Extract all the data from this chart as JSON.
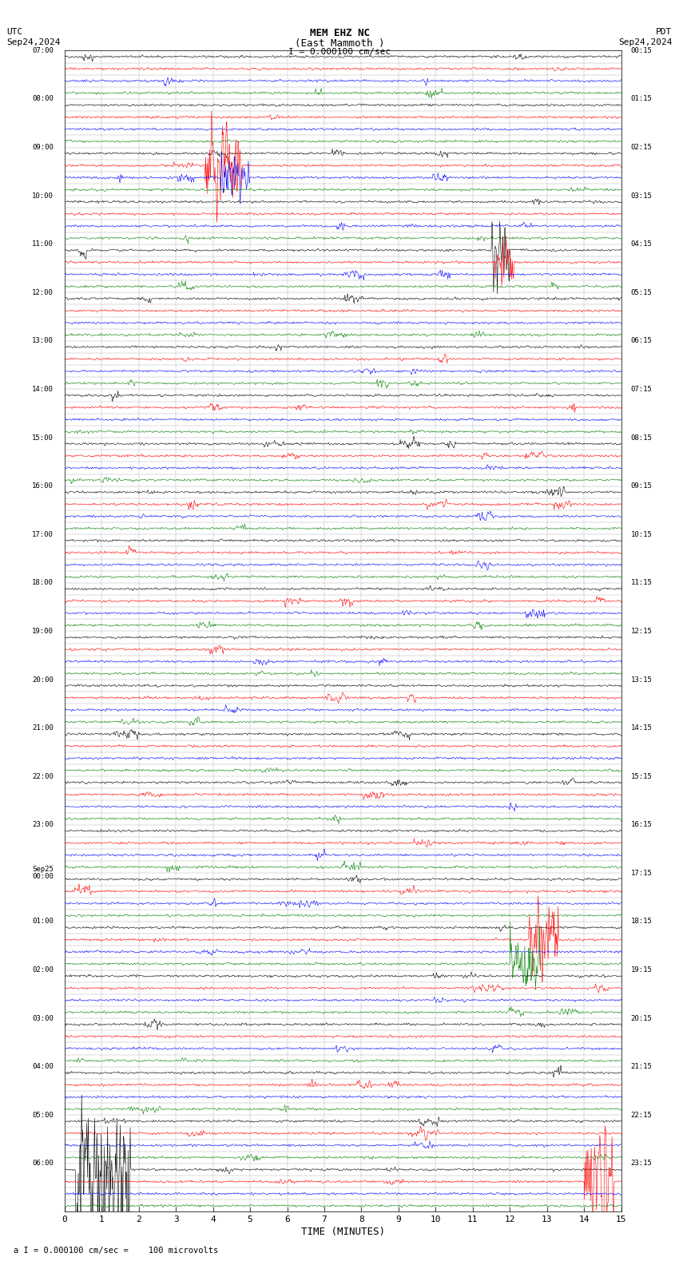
{
  "title_line1": "MEM EHZ NC",
  "title_line2": "(East Mammoth )",
  "scale_label": "I = 0.000100 cm/sec",
  "utc_label": "UTC",
  "pdt_label": "PDT",
  "date_left": "Sep24,2024",
  "date_right": "Sep24,2024",
  "bottom_label": "a I = 0.000100 cm/sec =    100 microvolts",
  "xlabel": "TIME (MINUTES)",
  "bg_color": "#ffffff",
  "grid_color": "#aaaaaa",
  "colors": [
    "black",
    "red",
    "blue",
    "green"
  ],
  "n_rows": 96,
  "minutes": 15,
  "fig_width": 8.5,
  "fig_height": 15.84,
  "hour_labels_utc": [
    [
      "07:00",
      0
    ],
    [
      "08:00",
      4
    ],
    [
      "09:00",
      8
    ],
    [
      "10:00",
      12
    ],
    [
      "11:00",
      16
    ],
    [
      "12:00",
      20
    ],
    [
      "13:00",
      24
    ],
    [
      "14:00",
      28
    ],
    [
      "15:00",
      32
    ],
    [
      "16:00",
      36
    ],
    [
      "17:00",
      40
    ],
    [
      "18:00",
      44
    ],
    [
      "19:00",
      48
    ],
    [
      "20:00",
      52
    ],
    [
      "21:00",
      56
    ],
    [
      "22:00",
      60
    ],
    [
      "23:00",
      64
    ],
    [
      "Sep25\n00:00",
      68
    ],
    [
      "01:00",
      72
    ],
    [
      "02:00",
      76
    ],
    [
      "03:00",
      80
    ],
    [
      "04:00",
      84
    ],
    [
      "05:00",
      88
    ],
    [
      "06:00",
      92
    ]
  ],
  "hour_labels_pdt": [
    [
      "00:15",
      0
    ],
    [
      "01:15",
      4
    ],
    [
      "02:15",
      8
    ],
    [
      "03:15",
      12
    ],
    [
      "04:15",
      16
    ],
    [
      "05:15",
      20
    ],
    [
      "06:15",
      24
    ],
    [
      "07:15",
      28
    ],
    [
      "08:15",
      32
    ],
    [
      "09:15",
      36
    ],
    [
      "10:15",
      40
    ],
    [
      "11:15",
      44
    ],
    [
      "12:15",
      48
    ],
    [
      "13:15",
      52
    ],
    [
      "14:15",
      56
    ],
    [
      "15:15",
      60
    ],
    [
      "16:15",
      64
    ],
    [
      "17:15",
      68
    ],
    [
      "18:15",
      72
    ],
    [
      "19:15",
      76
    ],
    [
      "20:15",
      80
    ],
    [
      "21:15",
      84
    ],
    [
      "22:15",
      88
    ],
    [
      "23:15",
      92
    ]
  ],
  "noise_seed": 42,
  "amplitude": 0.28,
  "noise_sigma": 0.8
}
